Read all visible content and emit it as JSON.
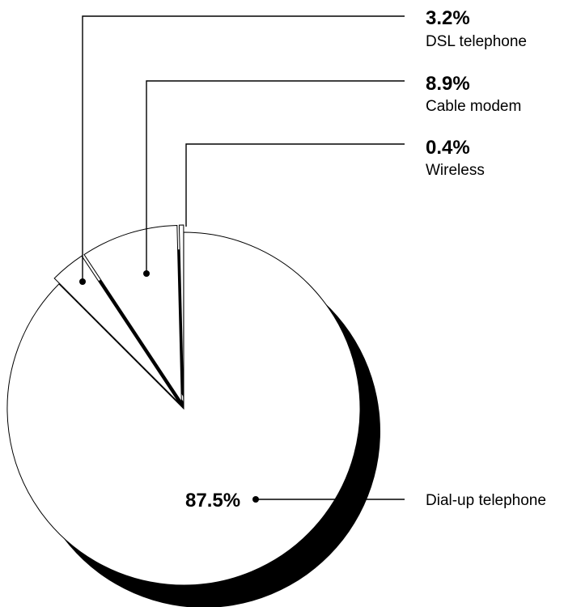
{
  "chart_data": {
    "type": "pie",
    "title": "",
    "slices": [
      {
        "label": "Dial-up telephone",
        "value": 87.5,
        "value_text": "87.5%"
      },
      {
        "label": "DSL telephone",
        "value": 3.2,
        "value_text": "3.2%"
      },
      {
        "label": "Cable modem",
        "value": 8.9,
        "value_text": "8.9%"
      },
      {
        "label": "Wireless",
        "value": 0.4,
        "value_text": "0.4%"
      }
    ],
    "style": {
      "slice_fill": "#ffffff",
      "outline_color": "#000000",
      "shadow_color": "#000000",
      "exploded": true
    }
  }
}
